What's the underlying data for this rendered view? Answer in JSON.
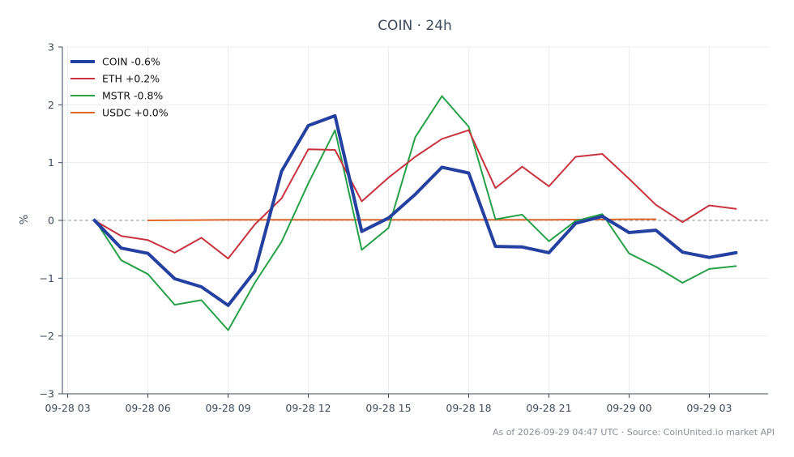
{
  "chart_data": {
    "type": "line",
    "title": "COIN · 24h",
    "ylabel": "%",
    "xlabel": "",
    "ylim": [
      -3,
      3
    ],
    "yticks": [
      3,
      2,
      1,
      0,
      -1,
      -2,
      -3
    ],
    "ytick_labels": [
      "3",
      "2",
      "1",
      "0",
      "−1",
      "−2",
      "−3"
    ],
    "xlim": [
      "2026-09-28 02:48",
      "2026-09-29 05:12"
    ],
    "xticks": [
      "2026-09-28 03:00",
      "2026-09-28 06:00",
      "2026-09-28 09:00",
      "2026-09-28 12:00",
      "2026-09-28 15:00",
      "2026-09-28 18:00",
      "2026-09-28 21:00",
      "2026-09-29 00:00",
      "2026-09-29 03:00"
    ],
    "xtick_labels": [
      "09-28 03",
      "09-28 06",
      "09-28 09",
      "09-28 12",
      "09-28 15",
      "09-28 18",
      "09-28 21",
      "09-29 00",
      "09-29 03"
    ],
    "zero_line": true,
    "grid": true,
    "legend_position": "top-left",
    "series": [
      {
        "name": "COIN -0.6%",
        "color": "#2440a0",
        "width": 4,
        "x": [
          "2026-09-28 04:00",
          "2026-09-28 05:00",
          "2026-09-28 06:00",
          "2026-09-28 07:00",
          "2026-09-28 08:00",
          "2026-09-28 09:00",
          "2026-09-28 10:00",
          "2026-09-28 11:00",
          "2026-09-28 12:00",
          "2026-09-28 13:00",
          "2026-09-28 14:00",
          "2026-09-28 15:00",
          "2026-09-28 16:00",
          "2026-09-28 17:00",
          "2026-09-28 18:00",
          "2026-09-28 19:00",
          "2026-09-28 20:00",
          "2026-09-28 21:00",
          "2026-09-28 22:00",
          "2026-09-28 23:00",
          "2026-09-29 00:00",
          "2026-09-29 01:00",
          "2026-09-29 02:00",
          "2026-09-29 03:00",
          "2026-09-29 04:00"
        ],
        "values": [
          0.0,
          -0.48,
          -0.57,
          -1.01,
          -1.15,
          -1.47,
          -0.88,
          0.85,
          1.64,
          1.81,
          -0.19,
          0.04,
          0.45,
          0.92,
          0.82,
          -0.45,
          -0.46,
          -0.56,
          -0.05,
          0.07,
          -0.21,
          -0.17,
          -0.55,
          -0.64,
          -0.56
        ]
      },
      {
        "name": "ETH +0.2%",
        "color": "#c9333d",
        "width": 2,
        "x": [
          "2026-09-28 04:00",
          "2026-09-28 05:00",
          "2026-09-28 06:00",
          "2026-09-28 07:00",
          "2026-09-28 08:00",
          "2026-09-28 09:00",
          "2026-09-28 10:00",
          "2026-09-28 11:00",
          "2026-09-28 12:00",
          "2026-09-28 13:00",
          "2026-09-28 14:00",
          "2026-09-28 15:00",
          "2026-09-28 16:00",
          "2026-09-28 17:00",
          "2026-09-28 18:00",
          "2026-09-28 19:00",
          "2026-09-28 20:00",
          "2026-09-28 21:00",
          "2026-09-28 22:00",
          "2026-09-28 23:00",
          "2026-09-29 00:00",
          "2026-09-29 01:00",
          "2026-09-29 02:00",
          "2026-09-29 03:00",
          "2026-09-29 04:00"
        ],
        "values": [
          0.0,
          -0.27,
          -0.34,
          -0.56,
          -0.3,
          -0.66,
          -0.07,
          0.38,
          1.23,
          1.22,
          0.33,
          0.74,
          1.1,
          1.41,
          1.56,
          0.56,
          0.93,
          0.59,
          1.1,
          1.15,
          0.72,
          0.27,
          -0.03,
          0.26,
          0.2
        ]
      },
      {
        "name": "MSTR -0.8%",
        "color": "#27a147",
        "width": 2,
        "x": [
          "2026-09-28 04:00",
          "2026-09-28 05:00",
          "2026-09-28 06:00",
          "2026-09-28 07:00",
          "2026-09-28 08:00",
          "2026-09-28 09:00",
          "2026-09-28 10:00",
          "2026-09-28 11:00",
          "2026-09-28 12:00",
          "2026-09-28 13:00",
          "2026-09-28 14:00",
          "2026-09-28 15:00",
          "2026-09-28 16:00",
          "2026-09-28 17:00",
          "2026-09-28 18:00",
          "2026-09-28 19:00",
          "2026-09-28 20:00",
          "2026-09-28 21:00",
          "2026-09-28 22:00",
          "2026-09-28 23:00",
          "2026-09-29 00:00",
          "2026-09-29 01:00",
          "2026-09-29 02:00",
          "2026-09-29 03:00",
          "2026-09-29 04:00"
        ],
        "values": [
          0.02,
          -0.69,
          -0.93,
          -1.46,
          -1.38,
          -1.9,
          -1.08,
          -0.37,
          0.64,
          1.56,
          -0.51,
          -0.13,
          1.44,
          2.15,
          1.62,
          0.02,
          0.1,
          -0.36,
          -0.01,
          0.11,
          -0.57,
          -0.8,
          -1.08,
          -0.84,
          -0.79
        ]
      },
      {
        "name": "USDC +0.0%",
        "color": "#e0662a",
        "width": 2,
        "x": [
          "2026-09-28 06:00",
          "2026-09-28 09:00",
          "2026-09-28 12:00",
          "2026-09-28 15:00",
          "2026-09-28 18:00",
          "2026-09-28 21:00",
          "2026-09-29 00:00",
          "2026-09-29 01:00"
        ],
        "values": [
          0.0,
          0.01,
          0.01,
          0.01,
          0.01,
          0.01,
          0.02,
          0.02
        ]
      }
    ]
  },
  "footer": {
    "text": "As of 2026-09-29 04:47 UTC · Source: CoinUnited.io market API"
  },
  "colors": {
    "axis": "#3d4a5a",
    "grid": "#ebedf0",
    "zero_line": "#8c98a4",
    "footer": "#8a8f98"
  }
}
